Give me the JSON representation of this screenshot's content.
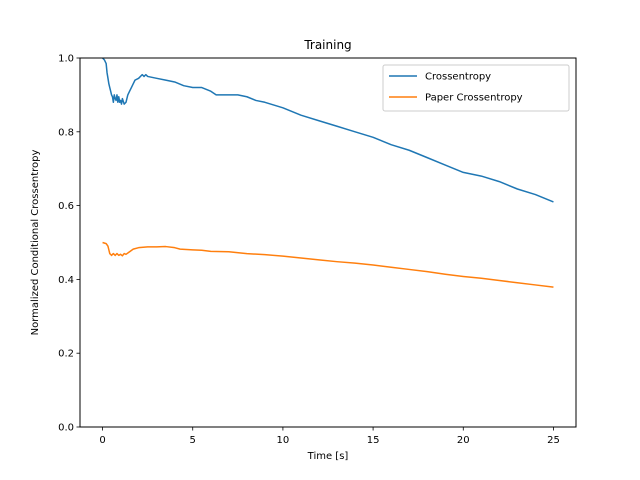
{
  "chart_data": {
    "type": "line",
    "title": "Training",
    "xlabel": "Time [s]",
    "ylabel": "Normalized Conditional Crossentropy",
    "xlim": [
      -1.25,
      26.25
    ],
    "ylim": [
      0.0,
      1.0
    ],
    "xticks": [
      0,
      5,
      10,
      15,
      20,
      25
    ],
    "yticks": [
      0.0,
      0.2,
      0.4,
      0.6,
      0.8,
      1.0
    ],
    "xtick_labels": [
      "0",
      "5",
      "10",
      "15",
      "20",
      "25"
    ],
    "ytick_labels": [
      "0.0",
      "0.2",
      "0.4",
      "0.6",
      "0.8",
      "1.0"
    ],
    "grid": false,
    "legend_position": "top-right",
    "series": [
      {
        "name": "Crossentropy",
        "color": "#1f77b4",
        "points": [
          [
            0,
            1.0
          ],
          [
            0.1,
            0.995
          ],
          [
            0.2,
            0.985
          ],
          [
            0.25,
            0.96
          ],
          [
            0.3,
            0.945
          ],
          [
            0.35,
            0.93
          ],
          [
            0.4,
            0.92
          ],
          [
            0.45,
            0.91
          ],
          [
            0.5,
            0.9
          ],
          [
            0.55,
            0.895
          ],
          [
            0.6,
            0.88
          ],
          [
            0.65,
            0.9
          ],
          [
            0.7,
            0.89
          ],
          [
            0.75,
            0.885
          ],
          [
            0.8,
            0.9
          ],
          [
            0.85,
            0.88
          ],
          [
            0.9,
            0.895
          ],
          [
            0.95,
            0.88
          ],
          [
            1.0,
            0.885
          ],
          [
            1.05,
            0.875
          ],
          [
            1.1,
            0.89
          ],
          [
            1.2,
            0.875
          ],
          [
            1.3,
            0.88
          ],
          [
            1.4,
            0.9
          ],
          [
            1.5,
            0.91
          ],
          [
            1.6,
            0.92
          ],
          [
            1.7,
            0.93
          ],
          [
            1.8,
            0.94
          ],
          [
            2.0,
            0.945
          ],
          [
            2.2,
            0.955
          ],
          [
            2.3,
            0.95
          ],
          [
            2.4,
            0.955
          ],
          [
            2.5,
            0.95
          ],
          [
            3.0,
            0.945
          ],
          [
            3.5,
            0.94
          ],
          [
            4.0,
            0.935
          ],
          [
            4.5,
            0.925
          ],
          [
            5.0,
            0.92
          ],
          [
            5.5,
            0.92
          ],
          [
            6.0,
            0.91
          ],
          [
            6.3,
            0.9
          ],
          [
            7.0,
            0.9
          ],
          [
            7.5,
            0.9
          ],
          [
            8.0,
            0.895
          ],
          [
            8.5,
            0.885
          ],
          [
            9.0,
            0.88
          ],
          [
            10.0,
            0.865
          ],
          [
            11.0,
            0.845
          ],
          [
            12.0,
            0.83
          ],
          [
            13.0,
            0.815
          ],
          [
            14.0,
            0.8
          ],
          [
            15.0,
            0.785
          ],
          [
            16.0,
            0.765
          ],
          [
            17.0,
            0.75
          ],
          [
            18.0,
            0.73
          ],
          [
            19.0,
            0.71
          ],
          [
            20.0,
            0.69
          ],
          [
            21.0,
            0.68
          ],
          [
            22.0,
            0.665
          ],
          [
            23.0,
            0.645
          ],
          [
            24.0,
            0.63
          ],
          [
            25.0,
            0.61
          ]
        ]
      },
      {
        "name": "Paper Crossentropy",
        "color": "#ff7f0e",
        "points": [
          [
            0,
            0.5
          ],
          [
            0.2,
            0.497
          ],
          [
            0.3,
            0.49
          ],
          [
            0.35,
            0.48
          ],
          [
            0.4,
            0.47
          ],
          [
            0.5,
            0.465
          ],
          [
            0.6,
            0.47
          ],
          [
            0.7,
            0.465
          ],
          [
            0.8,
            0.47
          ],
          [
            0.9,
            0.465
          ],
          [
            1.0,
            0.468
          ],
          [
            1.1,
            0.464
          ],
          [
            1.2,
            0.47
          ],
          [
            1.3,
            0.468
          ],
          [
            1.5,
            0.475
          ],
          [
            1.7,
            0.482
          ],
          [
            2.0,
            0.486
          ],
          [
            2.5,
            0.488
          ],
          [
            3.0,
            0.488
          ],
          [
            3.5,
            0.489
          ],
          [
            4.0,
            0.486
          ],
          [
            4.3,
            0.482
          ],
          [
            5.0,
            0.48
          ],
          [
            5.5,
            0.479
          ],
          [
            6.0,
            0.476
          ],
          [
            7.0,
            0.475
          ],
          [
            8.0,
            0.47
          ],
          [
            9.0,
            0.467
          ],
          [
            10.0,
            0.463
          ],
          [
            11.0,
            0.458
          ],
          [
            12.0,
            0.453
          ],
          [
            13.0,
            0.448
          ],
          [
            14.0,
            0.444
          ],
          [
            15.0,
            0.439
          ],
          [
            16.0,
            0.433
          ],
          [
            17.0,
            0.427
          ],
          [
            18.0,
            0.421
          ],
          [
            19.0,
            0.414
          ],
          [
            20.0,
            0.408
          ],
          [
            21.0,
            0.403
          ],
          [
            22.0,
            0.397
          ],
          [
            23.0,
            0.391
          ],
          [
            24.0,
            0.385
          ],
          [
            25.0,
            0.379
          ]
        ]
      }
    ]
  }
}
